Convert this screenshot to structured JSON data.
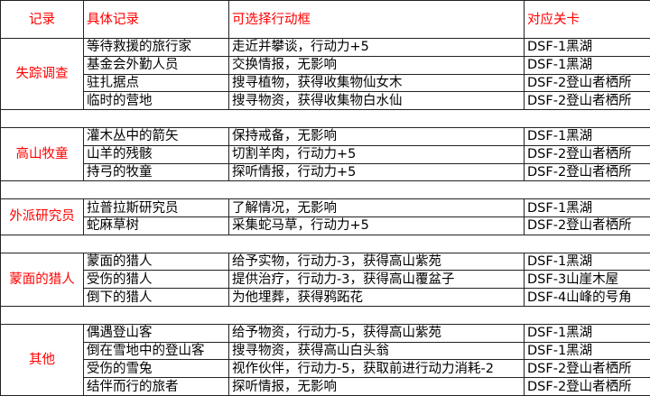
{
  "header": {
    "record": "记录",
    "detail": "具体记录",
    "action": "可选择行动框",
    "level": "对应关卡"
  },
  "colors": {
    "header_text": "#ff0000",
    "group_text": "#ff0000",
    "border": "#222222"
  },
  "groups": [
    {
      "name": "失踪调查",
      "rows": [
        {
          "detail": "等待救援的旅行家",
          "action": "走近并攀谈，行动力+5",
          "level": "DSF-1黑湖"
        },
        {
          "detail": "基金会外勤人员",
          "action": "交换情报，无影响",
          "level": "DSF-1黑湖"
        },
        {
          "detail": "驻扎据点",
          "action": "搜寻植物，获得收集物仙女木",
          "level": "DSF-2登山者栖所"
        },
        {
          "detail": "临时的营地",
          "action": "搜寻物资，获得收集物白水仙",
          "level": "DSF-2登山者栖所"
        }
      ]
    },
    {
      "name": "高山牧童",
      "rows": [
        {
          "detail": "灌木丛中的箭矢",
          "action": "保持戒备，无影响",
          "level": "DSF-1黑湖"
        },
        {
          "detail": "山羊的残骸",
          "action": "切割羊肉，行动力+5",
          "level": "DSF-2登山者栖所"
        },
        {
          "detail": "持弓的牧童",
          "action": "探听情报，行动力+5",
          "level": "DSF-2登山者栖所"
        }
      ]
    },
    {
      "name": "外派研究员",
      "rows": [
        {
          "detail": "拉普拉斯研究员",
          "action": "了解情况，无影响",
          "level": "DSF-1黑湖"
        },
        {
          "detail": "蛇麻草树",
          "action": "采集蛇马草，行动力+5",
          "level": "DSF-2登山者栖所"
        }
      ]
    },
    {
      "name": "蒙面的猎人",
      "rows": [
        {
          "detail": "蒙面的猎人",
          "action": "给予实物，行动力-3，获得高山紫苑",
          "level": "DSF-1黑湖"
        },
        {
          "detail": "受伤的猎人",
          "action": "提供治疗，行动力-3，获得高山覆盆子",
          "level": "DSF-3山崖木屋"
        },
        {
          "detail": "倒下的猎人",
          "action": "为他埋葬，获得鸦跖花",
          "level": "DSF-4山峰的号角"
        }
      ]
    },
    {
      "name": "其他",
      "rows": [
        {
          "detail": "偶遇登山客",
          "action": "给予物资，行动力-5，获得高山紫苑",
          "level": "DSF-1黑湖"
        },
        {
          "detail": "倒在雪地中的登山客",
          "action": "搜寻物资，获得高山白头翁",
          "level": "DSF-1黑湖"
        },
        {
          "detail": "受伤的雪兔",
          "action": "视作伙伴，行动力-5，获取前进行动力消耗-2",
          "level": "DSF-2登山者栖所"
        },
        {
          "detail": "结伴而行的旅者",
          "action": "探听情报，无影响",
          "level": "DSF-2登山者栖所"
        }
      ]
    }
  ]
}
